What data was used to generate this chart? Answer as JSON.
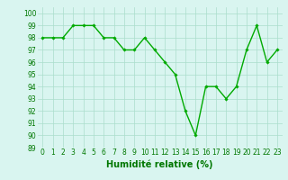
{
  "x": [
    0,
    1,
    2,
    3,
    4,
    5,
    6,
    7,
    8,
    9,
    10,
    11,
    12,
    13,
    14,
    15,
    16,
    17,
    18,
    19,
    20,
    21,
    22,
    23
  ],
  "y": [
    98,
    98,
    98,
    99,
    99,
    99,
    98,
    98,
    97,
    97,
    98,
    97,
    96,
    95,
    92,
    90,
    94,
    94,
    93,
    94,
    97,
    99,
    96,
    97
  ],
  "line_color": "#00aa00",
  "marker": "D",
  "marker_size": 1.8,
  "line_width": 1.0,
  "xlabel": "Humidité relative (%)",
  "xlabel_color": "#007700",
  "xlabel_fontsize": 7,
  "ylabel_ticks": [
    89,
    90,
    91,
    92,
    93,
    94,
    95,
    96,
    97,
    98,
    99,
    100
  ],
  "xlim": [
    -0.5,
    23.5
  ],
  "ylim": [
    89,
    100.5
  ],
  "background_color": "#d9f5f0",
  "grid_color": "#aaddcc",
  "tick_fontsize": 5.5,
  "tick_color": "#007700"
}
